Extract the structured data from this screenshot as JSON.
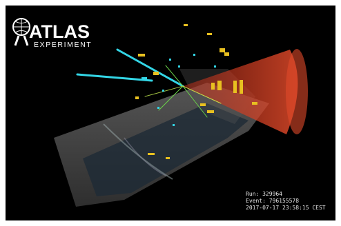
{
  "logo": {
    "title": "ATLAS",
    "subtitle": "EXPERIMENT"
  },
  "event_info": {
    "run": "Run: 329964",
    "event": "Event: 796155578",
    "timestamp": "2017-07-17 23:58:15 CEST"
  }
}
